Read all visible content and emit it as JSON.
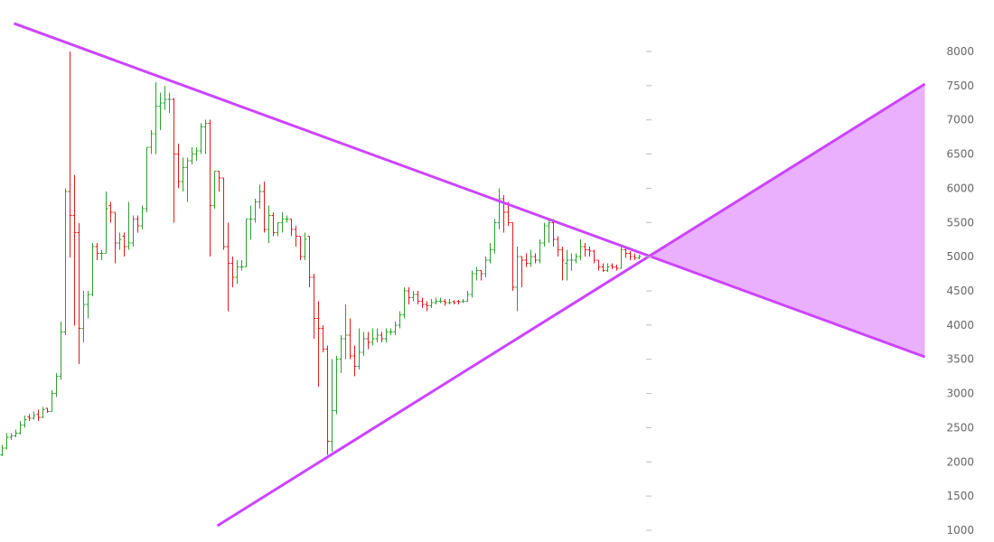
{
  "chart_data": {
    "type": "ohlc",
    "title": "",
    "xlabel": "",
    "ylabel": "",
    "ylim": [
      1000,
      8000
    ],
    "y_ticks": [
      8000,
      7500,
      7000,
      6500,
      6000,
      5500,
      5000,
      4500,
      4000,
      3500,
      3000,
      2500,
      2000,
      1500,
      1000
    ],
    "axis_position": "right",
    "grid": false,
    "colors": {
      "up": "#2ca02c",
      "down": "#e3191c",
      "trendline": "#cc44ff",
      "projection_fill": "#e9b0fd",
      "tick_label": "#666666",
      "tick_mark": "#bbbbbb"
    },
    "bars_ohlc": [
      [
        2100,
        2250,
        2080,
        2200
      ],
      [
        2200,
        2420,
        2180,
        2360
      ],
      [
        2360,
        2420,
        2320,
        2380
      ],
      [
        2380,
        2470,
        2360,
        2420
      ],
      [
        2420,
        2600,
        2400,
        2540
      ],
      [
        2540,
        2680,
        2500,
        2620
      ],
      [
        2660,
        2700,
        2600,
        2640
      ],
      [
        2640,
        2740,
        2620,
        2680
      ],
      [
        2700,
        2760,
        2600,
        2650
      ],
      [
        2650,
        2800,
        2640,
        2760
      ],
      [
        2780,
        2790,
        2720,
        2740
      ],
      [
        2740,
        3050,
        2740,
        3000
      ],
      [
        3000,
        3300,
        2950,
        3250
      ],
      [
        3250,
        4050,
        3200,
        3900
      ],
      [
        3900,
        6000,
        3850,
        5950
      ],
      [
        5950,
        8000,
        4990,
        5600
      ],
      [
        5600,
        6200,
        3990,
        5350
      ],
      [
        5350,
        5490,
        3430,
        3950
      ],
      [
        3950,
        4500,
        3750,
        4300
      ],
      [
        4300,
        4500,
        4100,
        4450
      ],
      [
        4450,
        5200,
        4420,
        5150
      ],
      [
        5150,
        5200,
        4950,
        5050
      ],
      [
        5050,
        5100,
        4950,
        5050
      ],
      [
        5050,
        5950,
        5050,
        5700
      ],
      [
        5750,
        5800,
        5500,
        5650
      ],
      [
        5650,
        5650,
        4900,
        5200
      ],
      [
        5200,
        5350,
        5100,
        5250
      ],
      [
        5300,
        5350,
        5000,
        5150
      ],
      [
        5150,
        5800,
        5100,
        5200
      ],
      [
        5200,
        5600,
        5150,
        5550
      ],
      [
        5550,
        5600,
        5350,
        5450
      ],
      [
        5450,
        5750,
        5400,
        5700
      ],
      [
        5700,
        6600,
        5650,
        6600
      ],
      [
        6600,
        6850,
        6500,
        6800
      ],
      [
        6800,
        7550,
        6500,
        7200
      ],
      [
        7200,
        7400,
        6850,
        7250
      ],
      [
        7250,
        7500,
        7150,
        7300
      ],
      [
        7300,
        7400,
        7100,
        7300
      ],
      [
        7300,
        7320,
        5500,
        6500
      ],
      [
        6500,
        6650,
        6000,
        6100
      ],
      [
        6100,
        6450,
        5950,
        6300
      ],
      [
        6300,
        6450,
        5800,
        6400
      ],
      [
        6400,
        6600,
        6350,
        6500
      ],
      [
        6500,
        6600,
        6400,
        6550
      ],
      [
        6550,
        6950,
        6500,
        6900
      ],
      [
        6900,
        7000,
        6500,
        6950
      ],
      [
        6950,
        7000,
        5000,
        5750
      ],
      [
        5750,
        6250,
        5700,
        6250
      ],
      [
        6250,
        6250,
        5950,
        6150
      ],
      [
        6150,
        6150,
        5100,
        5150
      ],
      [
        5150,
        5500,
        4200,
        4900
      ],
      [
        4900,
        5000,
        4550,
        4700
      ],
      [
        4700,
        4950,
        4600,
        4850
      ],
      [
        4850,
        4950,
        4800,
        4850
      ],
      [
        4850,
        5550,
        4850,
        5550
      ],
      [
        5550,
        5750,
        5250,
        5550
      ],
      [
        5550,
        5850,
        5500,
        5800
      ],
      [
        5800,
        6050,
        5700,
        5950
      ],
      [
        5950,
        6100,
        5350,
        5400
      ],
      [
        5400,
        5750,
        5200,
        5600
      ],
      [
        5600,
        5650,
        5300,
        5350
      ],
      [
        5350,
        5500,
        5300,
        5500
      ],
      [
        5500,
        5650,
        5350,
        5550
      ],
      [
        5550,
        5600,
        5500,
        5550
      ],
      [
        5550,
        5550,
        5300,
        5400
      ],
      [
        5400,
        5450,
        5150,
        5300
      ],
      [
        5300,
        5300,
        4950,
        5000
      ],
      [
        5000,
        5350,
        4950,
        5250
      ],
      [
        5300,
        5300,
        4550,
        4700
      ],
      [
        4700,
        4750,
        3800,
        4100
      ],
      [
        4100,
        4350,
        3100,
        3950
      ],
      [
        3950,
        4000,
        3600,
        3650
      ],
      [
        3650,
        3700,
        2100,
        2300
      ],
      [
        2300,
        3500,
        2150,
        2750
      ],
      [
        2750,
        3550,
        2700,
        3500
      ],
      [
        3500,
        3850,
        3300,
        3800
      ],
      [
        3800,
        4300,
        3500,
        3850
      ],
      [
        3850,
        4100,
        3500,
        3550
      ],
      [
        3550,
        3700,
        3250,
        3400
      ],
      [
        3400,
        3950,
        3350,
        3600
      ],
      [
        3600,
        3900,
        3550,
        3800
      ],
      [
        3800,
        3900,
        3650,
        3750
      ],
      [
        3750,
        3950,
        3700,
        3800
      ],
      [
        3800,
        3950,
        3750,
        3850
      ],
      [
        3850,
        3900,
        3750,
        3800
      ],
      [
        3800,
        3950,
        3750,
        3900
      ],
      [
        3900,
        3950,
        3850,
        3900
      ],
      [
        3900,
        4050,
        3850,
        4000
      ],
      [
        4000,
        4200,
        3950,
        4150
      ],
      [
        4150,
        4550,
        4100,
        4500
      ],
      [
        4500,
        4550,
        4300,
        4400
      ],
      [
        4400,
        4500,
        4350,
        4450
      ],
      [
        4450,
        4500,
        4300,
        4350
      ],
      [
        4350,
        4400,
        4250,
        4300
      ],
      [
        4300,
        4350,
        4200,
        4280
      ],
      [
        4280,
        4380,
        4250,
        4330
      ],
      [
        4330,
        4400,
        4300,
        4350
      ],
      [
        4350,
        4400,
        4320,
        4350
      ],
      [
        4350,
        4380,
        4280,
        4330
      ],
      [
        4330,
        4380,
        4300,
        4330
      ],
      [
        4340,
        4360,
        4300,
        4330
      ],
      [
        4350,
        4370,
        4300,
        4340
      ],
      [
        4340,
        4380,
        4320,
        4350
      ],
      [
        4350,
        4500,
        4340,
        4450
      ],
      [
        4450,
        4800,
        4400,
        4750
      ],
      [
        4750,
        4850,
        4650,
        4800
      ],
      [
        4800,
        4800,
        4650,
        4750
      ],
      [
        4750,
        5000,
        4700,
        4950
      ],
      [
        4950,
        5200,
        4900,
        5100
      ],
      [
        5100,
        5550,
        5050,
        5500
      ],
      [
        5500,
        6000,
        5400,
        5850
      ],
      [
        5850,
        5900,
        5350,
        5650
      ],
      [
        5650,
        5800,
        5450,
        5500
      ],
      [
        5500,
        5500,
        4500,
        4550
      ],
      [
        4550,
        5150,
        4200,
        5000
      ],
      [
        5000,
        5000,
        4550,
        4950
      ],
      [
        4950,
        5050,
        4850,
        4900
      ],
      [
        4900,
        5100,
        4850,
        5000
      ],
      [
        5000,
        5050,
        4900,
        4950
      ],
      [
        4950,
        5250,
        4900,
        5200
      ],
      [
        5200,
        5500,
        5150,
        5450
      ],
      [
        5450,
        5550,
        5200,
        5500
      ],
      [
        5500,
        5550,
        5150,
        5250
      ],
      [
        5250,
        5300,
        5000,
        5100
      ],
      [
        5100,
        5150,
        4650,
        4950
      ],
      [
        4900,
        5100,
        4650,
        4950
      ],
      [
        4950,
        5050,
        4800,
        4950
      ],
      [
        4950,
        5050,
        4900,
        5000
      ],
      [
        5000,
        5250,
        4950,
        5150
      ],
      [
        5150,
        5200,
        5000,
        5100
      ],
      [
        5100,
        5150,
        5000,
        5080
      ],
      [
        5080,
        5100,
        4900,
        4950
      ],
      [
        4950,
        4950,
        4800,
        4850
      ],
      [
        4850,
        4900,
        4780,
        4800
      ],
      [
        4800,
        4900,
        4780,
        4850
      ],
      [
        4870,
        4900,
        4820,
        4850
      ],
      [
        4850,
        4880,
        4800,
        4830
      ],
      [
        4830,
        5150,
        4830,
        5100
      ],
      [
        5100,
        5120,
        4980,
        5050
      ],
      [
        5050,
        5080,
        4950,
        5000
      ],
      [
        5000,
        5050,
        4950,
        4980
      ],
      [
        4980,
        5030,
        4960,
        5000
      ]
    ],
    "trendlines": [
      {
        "from": [
          2.6,
          8410
        ],
        "to": [
          204.2,
          3535
        ]
      },
      {
        "from": [
          47.6,
          1065
        ],
        "to": [
          204.2,
          7524
        ]
      }
    ],
    "projection_wedge": {
      "apex": [
        143.2,
        5010
      ],
      "upper_end": [
        204.2,
        7524
      ],
      "lower_end": [
        204.2,
        3535
      ]
    }
  }
}
